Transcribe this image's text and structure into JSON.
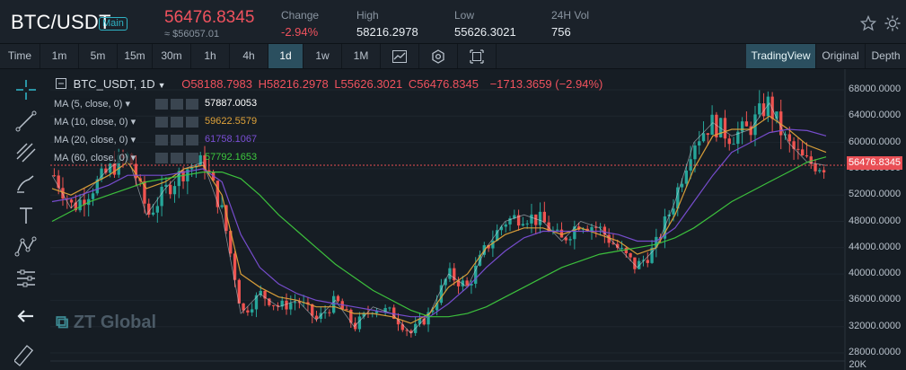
{
  "header": {
    "pair": "BTC/USDT",
    "badge": "Main",
    "price": "56476.8345",
    "price_usd": "≈ $56057.01",
    "change_label": "Change",
    "change_value": "-2.94%",
    "high_label": "High",
    "high_value": "58216.2978",
    "low_label": "Low",
    "low_value": "55626.3021",
    "vol_label": "24H Vol",
    "vol_value": "756"
  },
  "timeframes": [
    "Time",
    "1m",
    "5m",
    "15m",
    "30m",
    "1h",
    "4h",
    "1d",
    "1w",
    "1M"
  ],
  "active_timeframe": "1d",
  "views": [
    "TradingView",
    "Original",
    "Depth"
  ],
  "active_view": "TradingView",
  "legend": {
    "symbol": "BTC_USDT, 1D",
    "open": "O58188.7983",
    "high": "H58216.2978",
    "low": "L55626.3021",
    "close": "C56476.8345",
    "change": "−1713.3659 (−2.94%)"
  },
  "mas": [
    {
      "label": "MA (5, close, 0)",
      "value": "57887.0053",
      "color": "#ffffff"
    },
    {
      "label": "MA (10, close, 0)",
      "value": "59622.5579",
      "color": "#e0a33a"
    },
    {
      "label": "MA (20, close, 0)",
      "value": "61758.1067",
      "color": "#7b4fd6"
    },
    {
      "label": "MA (60, close, 0)",
      "value": "57792.1653",
      "color": "#3ec93e"
    }
  ],
  "y_axis": [
    "68000.0000",
    "64000.0000",
    "60000.0000",
    "56000.0000",
    "52000.0000",
    "48000.0000",
    "44000.0000",
    "40000.0000",
    "36000.0000",
    "32000.0000",
    "28000.0000",
    "20K"
  ],
  "current_price_tag": "56476.8345",
  "watermark": "ZT Global",
  "colors": {
    "up": "#26a69a",
    "down": "#ef5350",
    "accent": "#2fb2c4"
  },
  "chart_data": {
    "type": "line",
    "title": "",
    "series": [
      {
        "name": "",
        "values": [
          55000,
          50000,
          53000,
          56000,
          58000,
          49000,
          53000,
          56000,
          57000,
          49000,
          34000,
          37000,
          35000,
          36000,
          33000,
          36000,
          32000,
          35000,
          34000,
          31000,
          34000,
          40000,
          38000,
          44000,
          48000,
          49000,
          48000,
          45000,
          48000,
          47000,
          44000,
          41000,
          44000,
          51000,
          60000,
          63000,
          61000,
          62000,
          66000,
          60000,
          57000,
          56500
        ]
      },
      {
        "name": "",
        "values": [
          53000,
          52000,
          53500,
          55000,
          57000,
          53000,
          54000,
          56000,
          56500,
          52000,
          40000,
          38000,
          36500,
          36000,
          35000,
          35000,
          34000,
          34000,
          33500,
          32500,
          34000,
          38000,
          40000,
          44000,
          46000,
          47000,
          47000,
          46000,
          47000,
          46000,
          45000,
          43000,
          44000,
          49000,
          56000,
          61000,
          62000,
          62000,
          64000,
          62000,
          59600,
          58500
        ]
      },
      {
        "name": "",
        "values": [
          51000,
          51500,
          52500,
          53500,
          55000,
          55000,
          55000,
          55500,
          56000,
          54000,
          46000,
          41000,
          38500,
          37000,
          36000,
          35500,
          35000,
          34500,
          34000,
          33500,
          33500,
          35500,
          38000,
          41000,
          43500,
          45500,
          46500,
          46500,
          46500,
          46500,
          46000,
          45000,
          45000,
          47000,
          51000,
          55000,
          58500,
          60000,
          61500,
          62000,
          61800,
          61000
        ]
      },
      {
        "name": "",
        "values": [
          48000,
          49500,
          51000,
          52000,
          53000,
          54000,
          54500,
          55000,
          55500,
          55500,
          54500,
          52000,
          49000,
          46500,
          44000,
          41500,
          39500,
          37500,
          36000,
          34500,
          33500,
          33500,
          34000,
          35000,
          36500,
          38000,
          39500,
          41000,
          42000,
          43000,
          43500,
          44000,
          44500,
          45500,
          47000,
          49000,
          51000,
          52500,
          54000,
          55500,
          57000,
          57800
        ]
      }
    ],
    "ylim": [
      28000,
      70000
    ],
    "yticks": [
      "68000.0000",
      "64000.0000",
      "60000.0000",
      "56000.0000",
      "52000.0000",
      "48000.0000",
      "44000.0000",
      "40000.0000",
      "36000.0000",
      "32000.0000",
      "28000.0000"
    ]
  }
}
